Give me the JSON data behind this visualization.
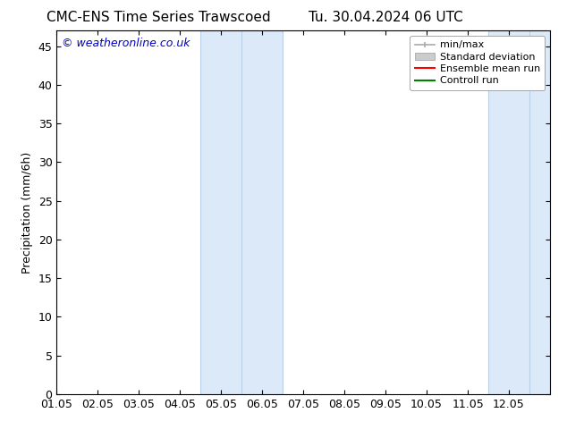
{
  "title_left": "CMC-ENS Time Series Trawscoed",
  "title_right": "Tu. 30.04.2024 06 UTC",
  "ylabel": "Precipitation (mm/6h)",
  "watermark": "© weatheronline.co.uk",
  "watermark_color": "#0000cc",
  "background_color": "#ffffff",
  "plot_bg_color": "#ffffff",
  "xticklabels": [
    "01.05",
    "02.05",
    "03.05",
    "04.05",
    "05.05",
    "06.05",
    "07.05",
    "08.05",
    "09.05",
    "10.05",
    "11.05",
    "12.05"
  ],
  "xlim": [
    0,
    12
  ],
  "ylim": [
    0,
    47
  ],
  "yticks": [
    0,
    5,
    10,
    15,
    20,
    25,
    30,
    35,
    40,
    45
  ],
  "shade_bands": [
    {
      "xmin": 3.5,
      "xmax": 5.5,
      "color": "#dce9f8"
    },
    {
      "xmin": 10.5,
      "xmax": 12.0,
      "color": "#dce9f8"
    }
  ],
  "vertical_lines_color": "#b8cfe8",
  "vertical_lines": [
    3.5,
    4.5,
    5.5,
    10.5,
    11.5
  ],
  "legend_entries": [
    {
      "label": "min/max",
      "color": "#aaaaaa",
      "lw": 1.2,
      "ls": "-"
    },
    {
      "label": "Standard deviation",
      "color": "#cccccc",
      "lw": 8,
      "ls": "-"
    },
    {
      "label": "Ensemble mean run",
      "color": "#ff0000",
      "lw": 1.5,
      "ls": "-"
    },
    {
      "label": "Controll run",
      "color": "#008000",
      "lw": 1.5,
      "ls": "-"
    }
  ],
  "title_fontsize": 11,
  "axis_fontsize": 9,
  "tick_fontsize": 9,
  "legend_fontsize": 8
}
